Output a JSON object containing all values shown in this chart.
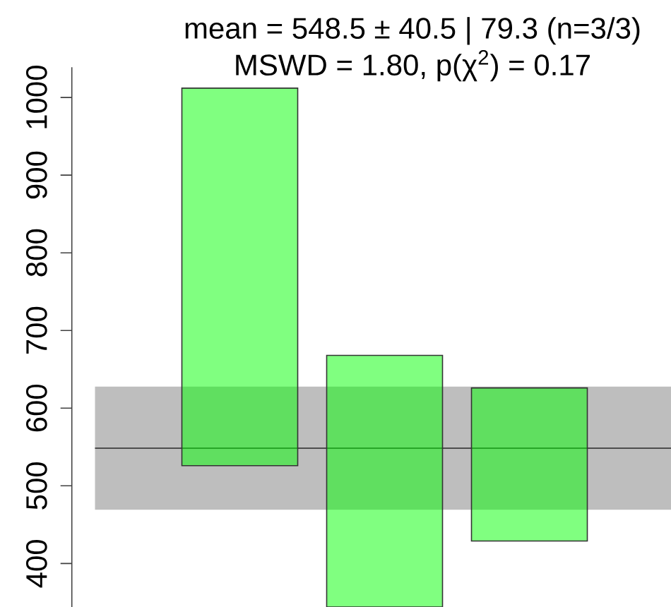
{
  "chart_data": {
    "type": "bar",
    "title": "mean = 548.5 ± 40.5 | 79.3  (n=3/3)",
    "subtitle": "MSWD = 1.80, p(χ$^{2}$) = 0.17",
    "categories": [
      null,
      null,
      null
    ],
    "base": [
      526,
      344,
      429
    ],
    "values": [
      486,
      324,
      197
    ],
    "color": "#80ff80",
    "ylim": [
      344,
      1039
    ],
    "yticks": [
      400,
      500,
      600,
      700,
      800,
      900,
      1000
    ],
    "tick_labels": "y",
    "bands": [
      {
        "axis": "y",
        "from": 469.2,
        "to": 627.8,
        "color": "#bebebe"
      }
    ],
    "ref_lines": [
      {
        "axis": "y",
        "value": 548.5,
        "color": "#4d4d4d"
      }
    ]
  }
}
